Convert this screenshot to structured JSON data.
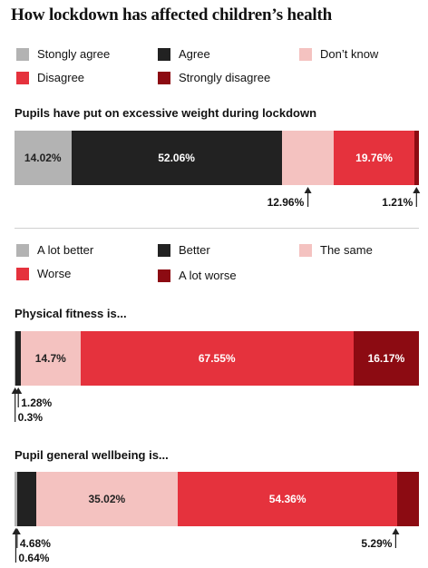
{
  "title": "How lockdown has affected children’s health",
  "colors": {
    "light_grey": "#b3b3b3",
    "black": "#222222",
    "pink": "#f4c2c0",
    "red": "#e5323d",
    "dark_red": "#8c0b12"
  },
  "legend1": [
    "Stongly agree",
    "Agree",
    "Don’t know",
    "Disagree",
    "Strongly disagree"
  ],
  "legend2": [
    "A lot better",
    "Better",
    "The same",
    "Worse",
    "A lot worse"
  ],
  "chart_data": [
    {
      "type": "bar",
      "orientation": "horizontal-stacked-100",
      "title": "Pupils have put on excessive weight during lockdown",
      "categories": [
        "Stongly agree",
        "Agree",
        "Don’t know",
        "Disagree",
        "Strongly disagree"
      ],
      "values": [
        14.02,
        52.06,
        12.96,
        19.76,
        1.21
      ],
      "labels": [
        "14.02%",
        "52.06%",
        "12.96%",
        "19.76%",
        "1.21%"
      ]
    },
    {
      "type": "bar",
      "orientation": "horizontal-stacked-100",
      "title": "Physical fitness is...",
      "categories": [
        "A lot better",
        "Better",
        "The same",
        "Worse",
        "A lot worse"
      ],
      "values": [
        0.3,
        1.28,
        14.7,
        67.55,
        16.17
      ],
      "labels": [
        "0.3%",
        "1.28%",
        "14.7%",
        "67.55%",
        "16.17%"
      ]
    },
    {
      "type": "bar",
      "orientation": "horizontal-stacked-100",
      "title": "Pupil general wellbeing is...",
      "categories": [
        "A lot better",
        "Better",
        "The same",
        "Worse",
        "A lot worse"
      ],
      "values": [
        0.64,
        4.68,
        35.02,
        54.36,
        5.29
      ],
      "labels": [
        "0.64%",
        "4.68%",
        "35.02%",
        "54.36%",
        "5.29%"
      ]
    }
  ]
}
